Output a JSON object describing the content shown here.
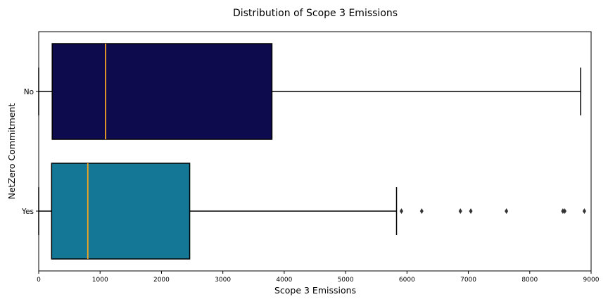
{
  "chart_data": {
    "type": "boxplot",
    "orientation": "horizontal",
    "title": "Distribution of Scope 3 Emissions",
    "xlabel": "Scope 3 Emissions",
    "ylabel": "NetZero Commitment",
    "xlim": [
      0,
      9000
    ],
    "xticks": [
      0,
      1000,
      2000,
      3000,
      4000,
      5000,
      6000,
      7000,
      8000,
      9000
    ],
    "grid": false,
    "colors": {
      "median": "#f5a623",
      "whisker": "#000000"
    },
    "categories": [
      "No",
      "Yes"
    ],
    "boxes": [
      {
        "category": "No",
        "whisker_low": 0,
        "q1": 220,
        "median": 1090,
        "q3": 3800,
        "whisker_high": 8830,
        "outliers": [],
        "color": "#0d0a4d"
      },
      {
        "category": "Yes",
        "whisker_low": 0,
        "q1": 210,
        "median": 800,
        "q3": 2460,
        "whisker_high": 5830,
        "outliers": [
          5910,
          6240,
          6870,
          7040,
          7620,
          8540,
          8570,
          8890
        ],
        "color": "#147796"
      }
    ]
  }
}
